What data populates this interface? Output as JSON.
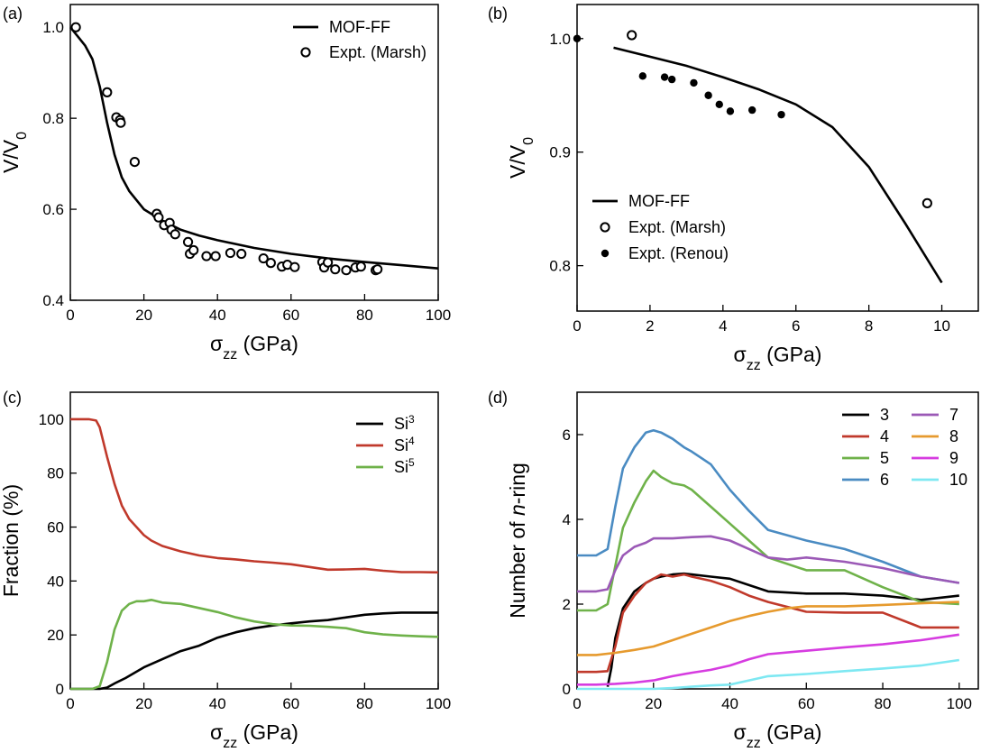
{
  "chart_data": [
    {
      "type": "line",
      "panel_label": "(a)",
      "xlabel": "σ_zz (GPa)",
      "ylabel": "V/V_0",
      "xlim": [
        0,
        100
      ],
      "ylim": [
        0.4,
        1.05
      ],
      "xticks": [
        0,
        20,
        40,
        60,
        80,
        100
      ],
      "yticks": [
        0.4,
        0.6,
        0.8,
        1.0
      ],
      "ytick_labels": [
        "0.4",
        "0.6",
        "0.8",
        "1.0"
      ],
      "legend_position": "top-right",
      "series": [
        {
          "name": "MOF-FF",
          "style": "line",
          "x": [
            0,
            2,
            4,
            6,
            8,
            10,
            12,
            14,
            16,
            20,
            25,
            30,
            35,
            40,
            50,
            60,
            70,
            80,
            90,
            100
          ],
          "y": [
            1.0,
            0.98,
            0.96,
            0.93,
            0.87,
            0.79,
            0.72,
            0.67,
            0.64,
            0.6,
            0.575,
            0.555,
            0.542,
            0.532,
            0.515,
            0.502,
            0.492,
            0.484,
            0.477,
            0.47
          ]
        },
        {
          "name": "Expt. (Marsh)",
          "style": "open-circle",
          "x": [
            1.5,
            10,
            12.5,
            13.5,
            13.7,
            17.5,
            23.5,
            24,
            25.5,
            27,
            27.5,
            28.5,
            32,
            32.5,
            33.5,
            37,
            39.5,
            43.5,
            46.5,
            52.5,
            54.5,
            57.5,
            59,
            61,
            68.5,
            69,
            70,
            72,
            75,
            77.5,
            79,
            83,
            83.5
          ],
          "y": [
            1.0,
            0.857,
            0.802,
            0.796,
            0.79,
            0.704,
            0.59,
            0.582,
            0.565,
            0.57,
            0.555,
            0.545,
            0.528,
            0.502,
            0.51,
            0.497,
            0.497,
            0.504,
            0.502,
            0.492,
            0.482,
            0.474,
            0.478,
            0.473,
            0.484,
            0.472,
            0.483,
            0.468,
            0.466,
            0.472,
            0.474,
            0.466,
            0.468
          ]
        }
      ]
    },
    {
      "type": "line",
      "panel_label": "(b)",
      "xlabel": "σ_zz (GPa)",
      "ylabel": "V/V_0",
      "xlim": [
        0,
        11
      ],
      "ylim": [
        0.76,
        1.03
      ],
      "xticks": [
        0,
        2,
        4,
        6,
        8,
        10
      ],
      "yticks": [
        0.8,
        0.9,
        1.0
      ],
      "ytick_labels": [
        "0.8",
        "0.9",
        "1.0"
      ],
      "legend_position": "bottom-left",
      "series": [
        {
          "name": "MOF-FF",
          "style": "line",
          "x": [
            1,
            2,
            3,
            4,
            5,
            6,
            7,
            8,
            9,
            10
          ],
          "y": [
            0.992,
            0.984,
            0.976,
            0.966,
            0.955,
            0.942,
            0.922,
            0.887,
            0.837,
            0.785
          ]
        },
        {
          "name": "Expt. (Marsh)",
          "style": "open-circle",
          "x": [
            1.5,
            9.6
          ],
          "y": [
            1.003,
            0.855
          ]
        },
        {
          "name": "Expt. (Renou)",
          "style": "filled-circle",
          "x": [
            0,
            1.8,
            2.4,
            2.6,
            3.2,
            3.6,
            3.9,
            4.2,
            4.8,
            5.6
          ],
          "y": [
            1.0,
            0.967,
            0.966,
            0.964,
            0.961,
            0.95,
            0.942,
            0.936,
            0.937,
            0.933
          ]
        }
      ]
    },
    {
      "type": "line",
      "panel_label": "(c)",
      "xlabel": "σ_zz (GPa)",
      "ylabel": "Fraction (%)",
      "xlim": [
        0,
        100
      ],
      "ylim": [
        0,
        110
      ],
      "xticks": [
        0,
        20,
        40,
        60,
        80,
        100
      ],
      "yticks": [
        0,
        20,
        40,
        60,
        80,
        100
      ],
      "ytick_labels": [
        "0",
        "20",
        "40",
        "60",
        "80",
        "100"
      ],
      "legend_position": "top-right",
      "series": [
        {
          "name": "Si^3",
          "color": "#000000",
          "x": [
            0,
            8,
            10,
            12,
            15,
            20,
            25,
            30,
            35,
            40,
            45,
            50,
            55,
            60,
            65,
            70,
            75,
            80,
            85,
            90,
            95,
            100
          ],
          "y": [
            0,
            0,
            0.5,
            2,
            4,
            8,
            11,
            14,
            16,
            19,
            21,
            22.5,
            23.5,
            24.3,
            25,
            25.5,
            26.5,
            27.5,
            28,
            28.3,
            28.3,
            28.3
          ]
        },
        {
          "name": "Si^4",
          "color": "#c0392b",
          "x": [
            0,
            5,
            7,
            8,
            10,
            12,
            14,
            16,
            18,
            20,
            22,
            25,
            30,
            35,
            40,
            45,
            50,
            55,
            60,
            65,
            70,
            75,
            80,
            85,
            90,
            95,
            100
          ],
          "y": [
            100,
            100,
            99.5,
            97,
            86,
            76,
            68,
            63,
            60,
            57,
            55,
            53,
            51,
            49.5,
            48.5,
            48,
            47.3,
            46.8,
            46.2,
            45.2,
            44.2,
            44.3,
            44.5,
            43.8,
            43.3,
            43.3,
            43.2
          ]
        },
        {
          "name": "Si^5",
          "color": "#6fb24a",
          "x": [
            0,
            6,
            8,
            10,
            12,
            14,
            16,
            18,
            20,
            22,
            25,
            30,
            35,
            40,
            45,
            50,
            55,
            60,
            65,
            70,
            75,
            80,
            85,
            90,
            95,
            100
          ],
          "y": [
            0,
            0,
            1,
            10,
            22,
            29,
            31.5,
            32.5,
            32.5,
            33,
            32,
            31.5,
            30,
            28.5,
            26.5,
            25,
            24,
            23.5,
            23.4,
            23,
            22.5,
            21,
            20.2,
            19.8,
            19.5,
            19.3
          ]
        }
      ]
    },
    {
      "type": "line",
      "panel_label": "(d)",
      "xlabel": "σ_zz (GPa)",
      "ylabel": "Number of n-ring",
      "xlim": [
        0,
        105
      ],
      "ylim": [
        0,
        7
      ],
      "xticks": [
        0,
        20,
        40,
        60,
        80,
        100
      ],
      "yticks": [
        0,
        2,
        4,
        6
      ],
      "ytick_labels": [
        "0",
        "2",
        "4",
        "6"
      ],
      "legend_position": "top-right",
      "series": [
        {
          "name": "3",
          "color": "#000000",
          "x": [
            8,
            9,
            10,
            12,
            15,
            18,
            20,
            22,
            25,
            28,
            30,
            35,
            40,
            45,
            50,
            60,
            70,
            80,
            90,
            100
          ],
          "y": [
            0.05,
            0.5,
            1.2,
            1.9,
            2.3,
            2.5,
            2.6,
            2.65,
            2.7,
            2.72,
            2.7,
            2.65,
            2.6,
            2.45,
            2.3,
            2.25,
            2.25,
            2.2,
            2.1,
            2.2
          ]
        },
        {
          "name": "4",
          "color": "#c0392b",
          "x": [
            0,
            5,
            8,
            10,
            12,
            15,
            18,
            20,
            22,
            25,
            28,
            30,
            35,
            40,
            45,
            50,
            60,
            70,
            80,
            90,
            100
          ],
          "y": [
            0.4,
            0.4,
            0.42,
            1.0,
            1.8,
            2.2,
            2.5,
            2.6,
            2.7,
            2.65,
            2.7,
            2.65,
            2.55,
            2.4,
            2.2,
            2.05,
            1.82,
            1.8,
            1.8,
            1.45,
            1.45
          ]
        },
        {
          "name": "5",
          "color": "#6fb24a",
          "x": [
            0,
            5,
            8,
            10,
            12,
            15,
            18,
            20,
            22,
            25,
            28,
            30,
            35,
            40,
            45,
            50,
            60,
            70,
            80,
            90,
            100
          ],
          "y": [
            1.85,
            1.85,
            2.0,
            2.9,
            3.8,
            4.4,
            4.9,
            5.15,
            5.0,
            4.85,
            4.8,
            4.7,
            4.3,
            3.9,
            3.5,
            3.1,
            2.8,
            2.8,
            2.4,
            2.05,
            2.0
          ]
        },
        {
          "name": "6",
          "color": "#4a8bc2",
          "x": [
            0,
            5,
            8,
            10,
            12,
            15,
            18,
            20,
            22,
            25,
            28,
            30,
            35,
            40,
            45,
            50,
            60,
            70,
            80,
            90,
            100
          ],
          "y": [
            3.15,
            3.15,
            3.3,
            4.3,
            5.2,
            5.7,
            6.05,
            6.1,
            6.05,
            5.9,
            5.7,
            5.6,
            5.3,
            4.7,
            4.2,
            3.75,
            3.5,
            3.3,
            3.0,
            2.65,
            2.5
          ]
        },
        {
          "name": "7",
          "color": "#9b59b6",
          "x": [
            0,
            5,
            8,
            10,
            12,
            15,
            18,
            20,
            25,
            30,
            35,
            40,
            45,
            50,
            55,
            60,
            70,
            80,
            90,
            100
          ],
          "y": [
            2.3,
            2.3,
            2.35,
            2.8,
            3.15,
            3.35,
            3.45,
            3.55,
            3.55,
            3.58,
            3.6,
            3.5,
            3.3,
            3.1,
            3.05,
            3.1,
            3.0,
            2.85,
            2.65,
            2.5
          ]
        },
        {
          "name": "8",
          "color": "#e69a2e",
          "x": [
            0,
            5,
            10,
            15,
            20,
            25,
            30,
            35,
            40,
            45,
            50,
            55,
            60,
            70,
            80,
            90,
            100
          ],
          "y": [
            0.8,
            0.8,
            0.85,
            0.92,
            1.0,
            1.15,
            1.3,
            1.45,
            1.6,
            1.72,
            1.82,
            1.9,
            1.95,
            1.95,
            1.98,
            2.02,
            2.05
          ]
        },
        {
          "name": "9",
          "color": "#d63ce0",
          "x": [
            0,
            5,
            10,
            15,
            20,
            25,
            30,
            35,
            40,
            45,
            50,
            60,
            70,
            80,
            90,
            100
          ],
          "y": [
            0.1,
            0.1,
            0.12,
            0.15,
            0.2,
            0.3,
            0.38,
            0.45,
            0.55,
            0.7,
            0.82,
            0.9,
            0.98,
            1.05,
            1.15,
            1.28
          ]
        },
        {
          "name": "10",
          "color": "#7ee8f2",
          "x": [
            0,
            10,
            20,
            25,
            30,
            35,
            40,
            45,
            50,
            60,
            70,
            80,
            90,
            100
          ],
          "y": [
            0.0,
            0.0,
            0.0,
            0.02,
            0.05,
            0.08,
            0.1,
            0.2,
            0.3,
            0.35,
            0.42,
            0.48,
            0.55,
            0.68
          ]
        }
      ]
    }
  ]
}
